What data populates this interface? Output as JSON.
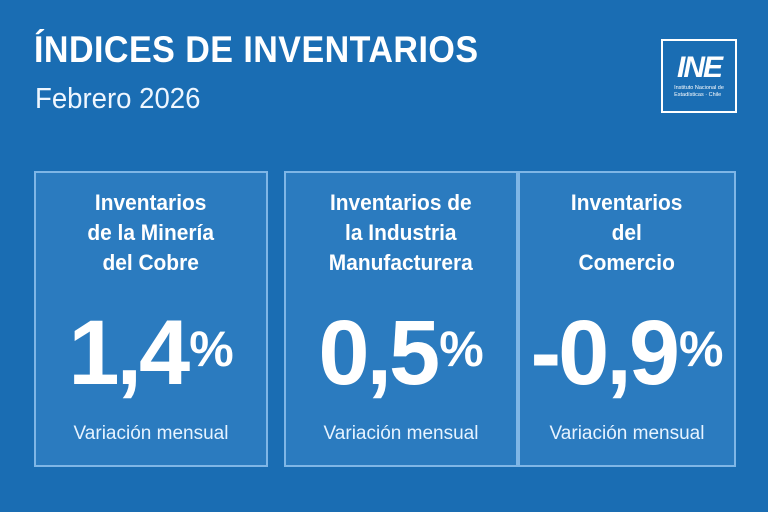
{
  "header": {
    "title": "ÍNDICES DE INVENTARIOS",
    "subtitle": "Febrero 2026"
  },
  "logo": {
    "mark": "INE",
    "text_line1": "Instituto Nacional de",
    "text_line2": "Estadísticas · Chile"
  },
  "cards": [
    {
      "title": "Inventarios\nde la Minería\ndel Cobre",
      "value": "1,4",
      "unit": "%",
      "caption": "Variación mensual"
    },
    {
      "title": "Inventarios de\nla Industria\nManufacturera",
      "value": "0,5",
      "unit": "%",
      "caption": "Variación mensual"
    },
    {
      "title": "Inventarios\ndel\nComercio",
      "value": "-0,9",
      "unit": "%",
      "caption": "Variación mensual"
    }
  ],
  "colors": {
    "background": "#1a6db3",
    "card": "#2b7bbf",
    "card_border": "#7fb6e6",
    "text": "#ffffff"
  }
}
